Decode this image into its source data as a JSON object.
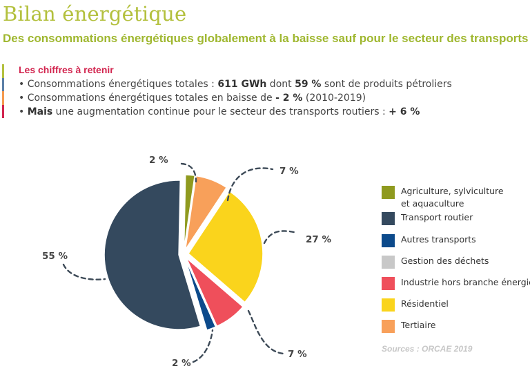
{
  "header": {
    "title": "Bilan énergétique",
    "subtitle": "Des consommations énergétiques globalement à la baisse sauf pour le secteur des transports"
  },
  "key_figures": {
    "heading": "Les chiffres à retenir",
    "bullets": [
      {
        "bullet": "•",
        "pre": " Consommations énergétiques totales : ",
        "b1": "611 GWh",
        "mid": " dont ",
        "b2": "59 %",
        "post": " sont de produits pétroliers"
      },
      {
        "bullet": "•",
        "pre": " Consommations énergétiques totales en baisse de ",
        "b1": "- 2 %",
        "mid": " (2010-2019)",
        "b2": "",
        "post": ""
      },
      {
        "bullet": "•",
        "pre": " ",
        "b1": "Mais",
        "mid": " une augmentation continue pour le secteur des transports routiers : ",
        "b2": "+ 6 %",
        "post": ""
      }
    ],
    "strip_colors": [
      "#b3c03d",
      "#5b7fa6",
      "#f59a4e",
      "#d2244e"
    ]
  },
  "chart_data": {
    "type": "pie",
    "title": "",
    "slices": [
      {
        "name": "Agriculture, sylviculture et aquaculture",
        "value": 2,
        "label": "2 %",
        "color": "#8f9a1f"
      },
      {
        "name": "Tertiaire",
        "value": 7,
        "label": "7 %",
        "color": "#f8a05a"
      },
      {
        "name": "Résidentiel",
        "value": 27,
        "label": "27 %",
        "color": "#fad41c"
      },
      {
        "name": "Industrie hors branche énergie",
        "value": 7,
        "label": "7 %",
        "color": "#ef4f5b"
      },
      {
        "name": "Autres transports",
        "value": 2,
        "label": "2 %",
        "color": "#0c4a8b"
      },
      {
        "name": "Transport routier",
        "value": 55,
        "label": "55 %",
        "color": "#34495e"
      }
    ],
    "legend": [
      {
        "line1": "Agriculture, sylviculture",
        "line2": "et aquaculture",
        "color": "#8f9a1f"
      },
      {
        "line1": "Transport routier",
        "line2": "",
        "color": "#34495e"
      },
      {
        "line1": "Autres transports",
        "line2": "",
        "color": "#0c4a8b"
      },
      {
        "line1": "Gestion des déchets",
        "line2": "",
        "color": "#c8c8c8"
      },
      {
        "line1": "Industrie hors branche énergie",
        "line2": "",
        "color": "#ef4f5b"
      },
      {
        "line1": "Résidentiel",
        "line2": "",
        "color": "#fad41c"
      },
      {
        "line1": "Tertiaire",
        "line2": "",
        "color": "#f8a05a"
      }
    ],
    "legend_placement": "right",
    "source": "Sources : ORCAE 2019"
  }
}
